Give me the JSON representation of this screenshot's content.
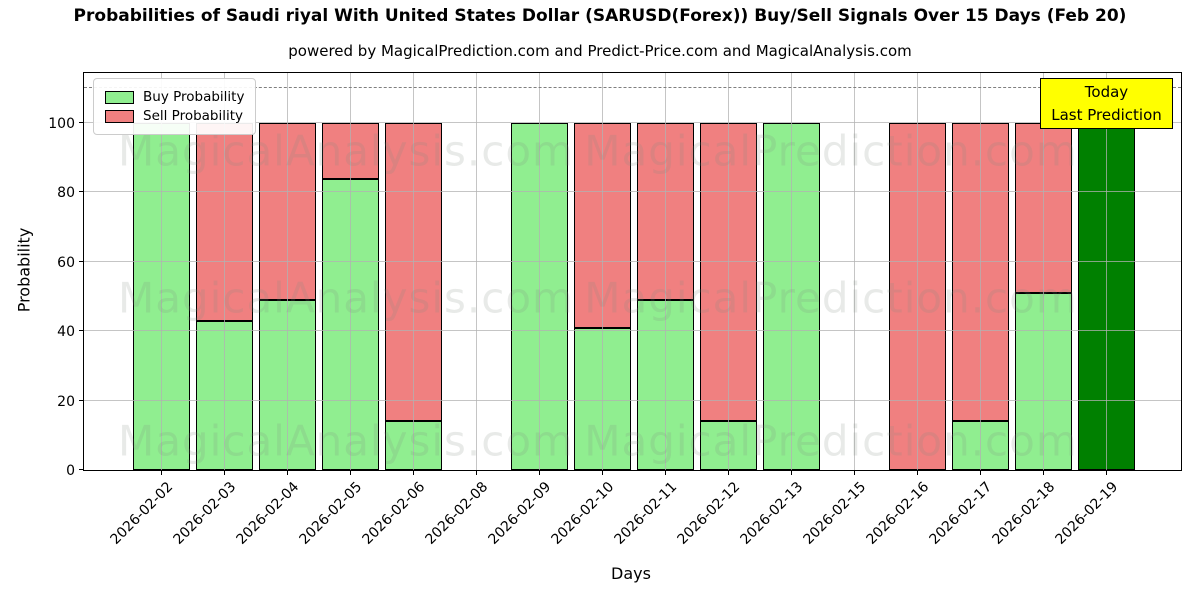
{
  "title": "Probabilities of Saudi riyal With United States Dollar (SARUSD(Forex)) Buy/Sell Signals Over 15 Days (Feb 20)",
  "subtitle": "powered by MagicalPrediction.com and Predict-Price.com and MagicalAnalysis.com",
  "annotation": {
    "line1": "Today",
    "line2": "Last Prediction",
    "bg": "#FFFF00"
  },
  "watermarks": {
    "left_text": "MagicalAnalysis.com",
    "right_text": "MagicalPrediction.com"
  },
  "colors": {
    "buy": "#90EE90",
    "sell": "#F08080",
    "today_bar": "#008000",
    "annotation_bg": "#FFFF00",
    "grid": "#b2b2b2",
    "dashed_line": "#7f7f7f",
    "bar_edge": "#000000"
  },
  "chart_data": {
    "type": "bar",
    "stacked": true,
    "title": "Probabilities of Saudi riyal With United States Dollar (SARUSD(Forex)) Buy/Sell Signals Over 15 Days (Feb 20)",
    "xlabel": "Days",
    "ylabel": "Probability",
    "yticks": [
      0,
      20,
      40,
      60,
      80,
      100
    ],
    "ylim": [
      0,
      115
    ],
    "dashed_line_y": 110,
    "grid": true,
    "legend_position": "upper left",
    "categories": [
      "2026-02-02",
      "2026-02-03",
      "2026-02-04",
      "2026-02-05",
      "2026-02-06",
      "2026-02-08",
      "2026-02-09",
      "2026-02-10",
      "2026-02-11",
      "2026-02-12",
      "2026-02-13",
      "2026-02-15",
      "2026-02-16",
      "2026-02-17",
      "2026-02-18",
      "2026-02-19"
    ],
    "series": [
      {
        "name": "Buy Probability",
        "color": "#90EE90",
        "values": [
          100,
          43,
          49,
          84,
          14,
          null,
          100,
          41,
          49,
          14,
          100,
          null,
          0,
          14,
          51,
          null
        ]
      },
      {
        "name": "Sell Probability",
        "color": "#F08080",
        "values": [
          0,
          57,
          51,
          16,
          86,
          null,
          0,
          59,
          51,
          86,
          0,
          null,
          100,
          86,
          49,
          null
        ]
      },
      {
        "name": "Today Last Prediction",
        "color": "#008000",
        "values": [
          null,
          null,
          null,
          null,
          null,
          null,
          null,
          null,
          null,
          null,
          null,
          null,
          null,
          null,
          null,
          100
        ]
      }
    ]
  }
}
